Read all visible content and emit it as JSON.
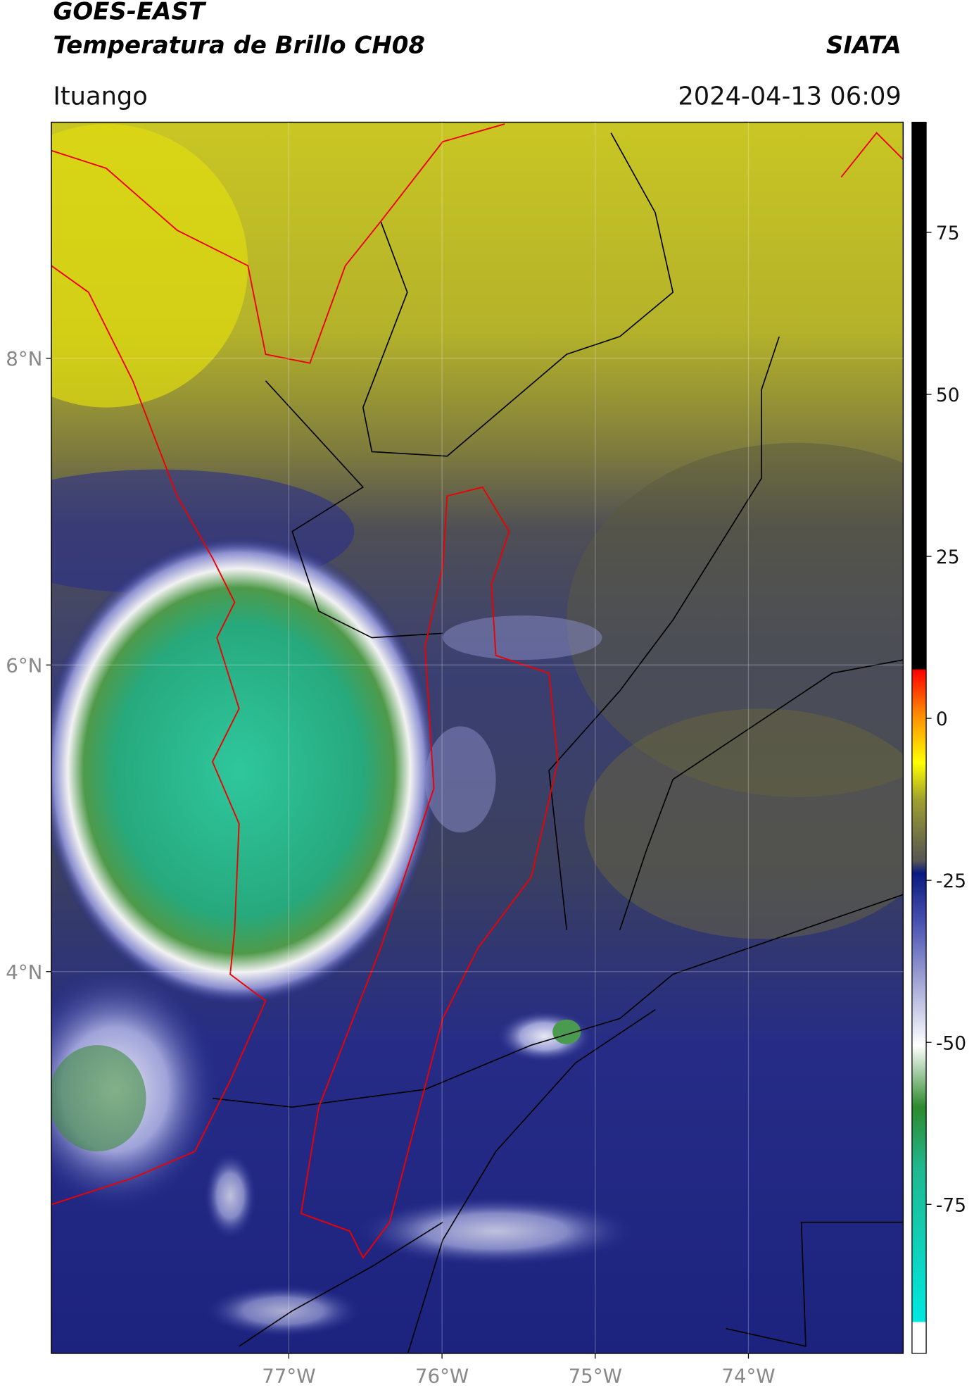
{
  "header": {
    "title": "GOES-EAST",
    "subtitle": "Temperatura de Brillo CH08",
    "source": "SIATA",
    "location": "Ituango",
    "datetime": "2024-04-13 06:09"
  },
  "map": {
    "xlim": [
      -78.55,
      -72.99
    ],
    "ylim": [
      1.51,
      9.54
    ],
    "xticks": [
      {
        "value": -77,
        "label": "77°W"
      },
      {
        "value": -76,
        "label": "76°W"
      },
      {
        "value": -75,
        "label": "75°W"
      },
      {
        "value": -74,
        "label": "74°W"
      }
    ],
    "yticks": [
      {
        "value": 8,
        "label": "8°N"
      },
      {
        "value": 6,
        "label": "6°N"
      },
      {
        "value": 4,
        "label": "4°N"
      }
    ],
    "grid": true
  },
  "colorbar": {
    "lim": [
      -98,
      92
    ],
    "ticks": [
      75,
      50,
      25,
      0,
      -25,
      -50,
      -75
    ]
  }
}
